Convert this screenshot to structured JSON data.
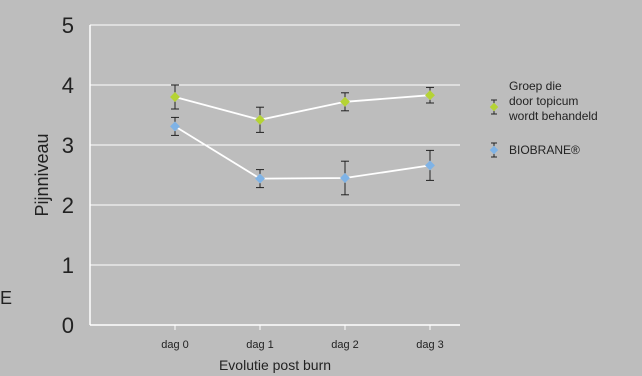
{
  "chart_data": {
    "type": "line",
    "categories": [
      "dag 0",
      "dag 1",
      "dag 2",
      "dag 3"
    ],
    "series": [
      {
        "name": "Groep die door topicum wordt behandeld",
        "values": [
          3.8,
          3.42,
          3.72,
          3.83
        ],
        "error": [
          0.2,
          0.21,
          0.15,
          0.13
        ],
        "color": "#b5d335"
      },
      {
        "name": "BIOBRANE®",
        "values": [
          3.31,
          2.44,
          2.45,
          2.66
        ],
        "error": [
          0.15,
          0.15,
          0.28,
          0.25
        ],
        "color": "#7fb3e6"
      }
    ],
    "xlabel": "Evolutie post burn",
    "ylabel": "Pijnniveau",
    "ylim": [
      0,
      5
    ],
    "yticks": [
      "0",
      "1",
      "2",
      "3",
      "4",
      "5"
    ],
    "grid": true,
    "legend_position": "right",
    "line_color": "#ffffff"
  },
  "stray_text": "E"
}
